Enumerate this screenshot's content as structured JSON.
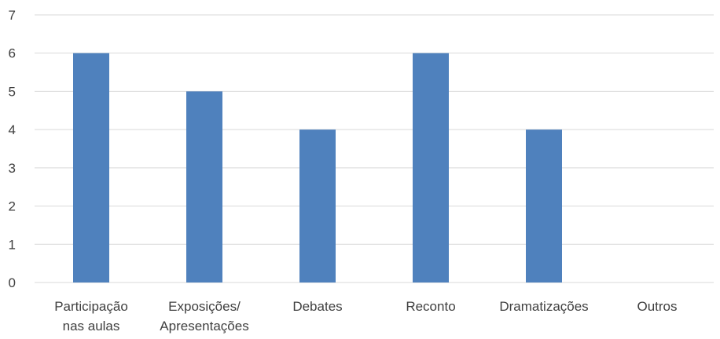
{
  "chart_data": {
    "type": "bar",
    "categories": [
      [
        "Participação",
        "nas aulas"
      ],
      [
        "Exposições/",
        "Apresentações"
      ],
      [
        "Debates"
      ],
      [
        "Reconto"
      ],
      [
        "Dramatizações"
      ],
      [
        "Outros"
      ]
    ],
    "values": [
      6,
      5,
      4,
      6,
      4,
      0
    ],
    "title": "",
    "xlabel": "",
    "ylabel": "",
    "ylim": [
      0,
      7
    ],
    "yticks": [
      "0",
      "1",
      "2",
      "3",
      "4",
      "5",
      "6",
      "7"
    ],
    "grid": true,
    "legend": "none",
    "bar_color": "#4f81bd",
    "grid_color": "#d9d9d9",
    "text_color": "#404040"
  }
}
